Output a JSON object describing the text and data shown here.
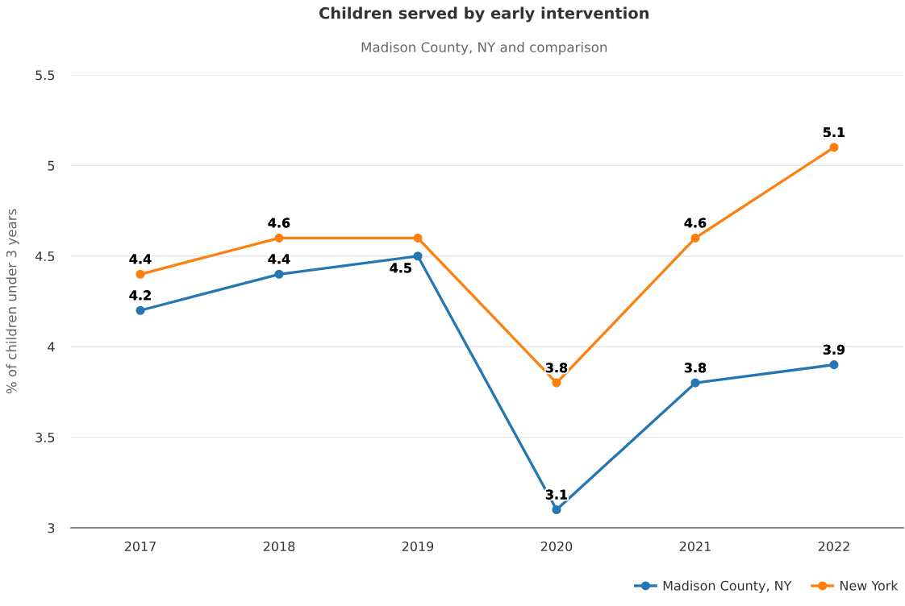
{
  "chart_data": {
    "type": "line",
    "title": "Children served by early intervention",
    "subtitle": "Madison County, NY and comparison",
    "ylabel": "% of children under 3 years",
    "categories": [
      "2017",
      "2018",
      "2019",
      "2020",
      "2021",
      "2022"
    ],
    "series": [
      {
        "name": "Madison County, NY",
        "color": "#2477b3",
        "values": [
          4.2,
          4.4,
          4.5,
          3.1,
          3.8,
          3.9
        ],
        "value_labels": [
          "4.2",
          "4.4",
          "4.5",
          "3.1",
          "3.8",
          "3.9"
        ]
      },
      {
        "name": "New York",
        "color": "#ff7f0e",
        "values": [
          4.4,
          4.6,
          4.6,
          3.8,
          4.6,
          5.1
        ],
        "value_labels": [
          "4.4",
          "4.6",
          null,
          "3.8",
          "4.6",
          "5.1"
        ]
      }
    ],
    "ylim": [
      3,
      5.5
    ],
    "yticks": [
      3,
      {
        "value": 3.5,
        "label": "3.5"
      },
      4,
      {
        "value": 4.5,
        "label": "4.5"
      },
      5,
      {
        "value": 5.5,
        "label": "5.5"
      }
    ],
    "grid": "y",
    "legend": "bottom right",
    "marker": "circle",
    "line_style": "solid"
  }
}
